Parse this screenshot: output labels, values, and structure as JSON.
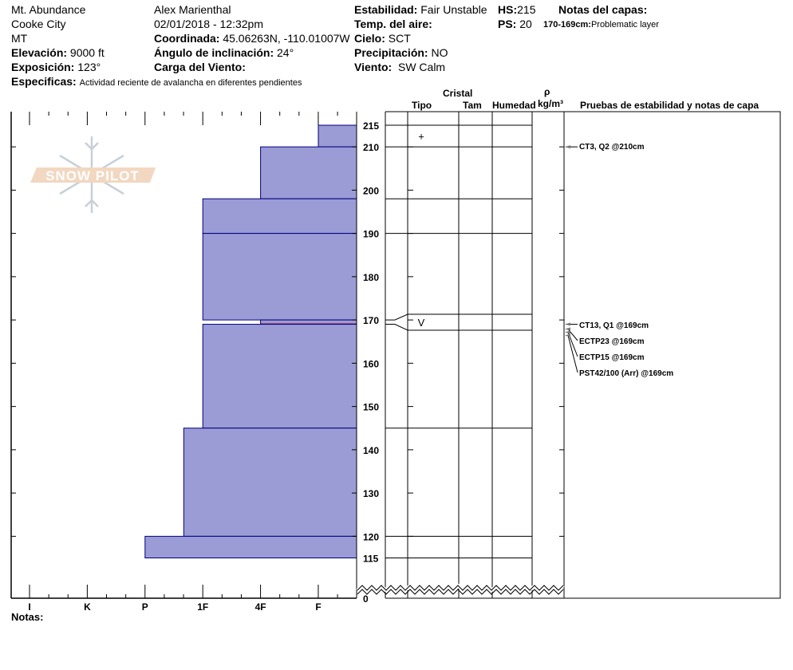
{
  "site": {
    "location": "Mt. Abundance",
    "area": "Cooke City",
    "state": "MT"
  },
  "observer": "Alex Marienthal",
  "datetime": "02/01/2018 - 12:32pm",
  "fields": {
    "elevation": {
      "label": "Elevación:",
      "value": "9000 ft"
    },
    "aspect": {
      "label": "Exposición:",
      "value": "123°"
    },
    "coords": {
      "label": "Coordinada:",
      "value": "45.06263N, -110.01007W"
    },
    "slope": {
      "label": "Ángulo de inclinación:",
      "value": "24°"
    },
    "wind_load": {
      "label": "Carga del Viento:",
      "value": ""
    },
    "stability": {
      "label": "Estabilidad:",
      "value": "Fair Unstable"
    },
    "air_temp": {
      "label": "Temp. del aire:",
      "value": ""
    },
    "sky": {
      "label": "Cielo:",
      "value": "SCT"
    },
    "precip": {
      "label": "Precipitación:",
      "value": "NO"
    },
    "wind": {
      "label": "Viento:",
      "value": "SW Calm"
    },
    "hs": {
      "label": "HS:",
      "value": "215"
    },
    "ps": {
      "label": "PS:",
      "value": "20"
    },
    "specifics": {
      "label": "Especificas:",
      "value": "Actividad reciente de avalancha en diferentes pendientes"
    },
    "layer_notes": {
      "label": "Notas del capas:",
      "range": "170-169cm:",
      "value": "Problematic layer"
    }
  },
  "columns": {
    "crystal": "Cristal",
    "type": "Tipo",
    "size": "Tam",
    "moisture": "Humedad",
    "rho": "ρ",
    "density_unit": "kg/m³",
    "tests": "Pruebas de estabilidad y notas de capa"
  },
  "notes_label": "Notas:",
  "logo_text": "SNOW PILOT",
  "chart_data": {
    "type": "bar",
    "hardness_scale": [
      "I",
      "K",
      "P",
      "1F",
      "4F",
      "F"
    ],
    "depth_ticks": [
      215,
      210,
      200,
      190,
      180,
      170,
      160,
      150,
      140,
      130,
      120,
      115,
      0
    ],
    "ylim": [
      0,
      215
    ],
    "bar_color": "#9b9bd6",
    "weak_layer_color": "#b01010",
    "layers": [
      {
        "top": 215,
        "bottom": 210,
        "hardness": "F",
        "grain": "+"
      },
      {
        "top": 210,
        "bottom": 198,
        "hardness": "4F",
        "grain": ""
      },
      {
        "top": 198,
        "bottom": 190,
        "hardness": "1F",
        "grain": ""
      },
      {
        "top": 190,
        "bottom": 170,
        "hardness": "1F",
        "grain": ""
      },
      {
        "top": 170,
        "bottom": 169,
        "hardness": "4F",
        "grain": "V",
        "weak": true
      },
      {
        "top": 169,
        "bottom": 145,
        "hardness": "1F",
        "grain": ""
      },
      {
        "top": 145,
        "bottom": 120,
        "hardness": "1F-",
        "grain": ""
      },
      {
        "top": 120,
        "bottom": 115,
        "hardness": "P",
        "grain": ""
      }
    ],
    "tests": [
      {
        "text": "CT3, Q2 @210cm",
        "depth": 210
      },
      {
        "text": "CT13, Q1 @169cm",
        "depth": 169
      },
      {
        "text": "ECTP23 @169cm",
        "depth": 169
      },
      {
        "text": "ECTP15 @169cm",
        "depth": 169
      },
      {
        "text": "PST42/100 (Arr) @169cm",
        "depth": 169
      }
    ]
  }
}
